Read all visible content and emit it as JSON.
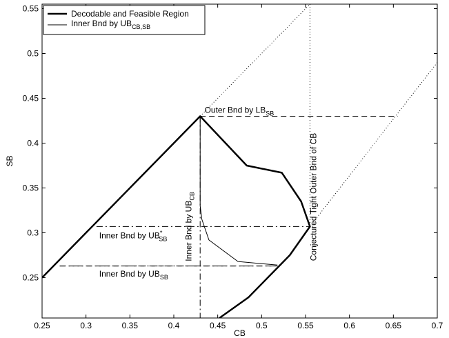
{
  "chart_data": {
    "type": "line",
    "xlabel": "CB",
    "ylabel": "SB",
    "xlim": [
      0.25,
      0.7
    ],
    "ylim": [
      0.205,
      0.555
    ],
    "xticks": [
      0.25,
      0.3,
      0.35,
      0.4,
      0.45,
      0.5,
      0.55,
      0.6,
      0.65,
      0.7
    ],
    "xtick_labels": [
      "0.25",
      "0.3",
      "0.35",
      "0.4",
      "0.45",
      "0.5",
      "0.55",
      "0.6",
      "0.65",
      "0.7"
    ],
    "yticks": [
      0.25,
      0.3,
      0.35,
      0.4,
      0.45,
      0.5,
      0.55
    ],
    "ytick_labels": [
      "0.25",
      "0.3",
      "0.35",
      "0.4",
      "0.45",
      "0.5",
      "0.55"
    ],
    "grid": false,
    "legend_position": "top-left",
    "series": [
      {
        "name": "Decodable and Feasible Region",
        "style": "thick-solid",
        "segments": [
          [
            [
              0.25,
              0.25
            ],
            [
              0.43,
              0.43
            ],
            [
              0.483,
              0.375
            ],
            [
              0.523,
              0.367
            ],
            [
              0.545,
              0.335
            ],
            [
              0.555,
              0.307
            ],
            [
              0.532,
              0.275
            ],
            [
              0.485,
              0.228
            ],
            [
              0.452,
              0.205
            ]
          ]
        ]
      },
      {
        "name": "Inner Bnd by UB",
        "name_subscript": "CB,SB",
        "style": "thin-solid",
        "segments": [
          [
            [
              0.43,
              0.43
            ],
            [
              0.43,
              0.33
            ],
            [
              0.432,
              0.315
            ],
            [
              0.44,
              0.292
            ],
            [
              0.473,
              0.268
            ],
            [
              0.518,
              0.264
            ]
          ]
        ]
      },
      {
        "style": "dashed",
        "segments": [
          [
            [
              0.43,
              0.43
            ],
            [
              0.655,
              0.43
            ]
          ],
          [
            [
              0.27,
              0.263
            ],
            [
              0.518,
              0.263
            ]
          ]
        ]
      },
      {
        "style": "dashdot",
        "segments": [
          [
            [
              0.43,
              0.43
            ],
            [
              0.43,
              0.205
            ]
          ],
          [
            [
              0.312,
              0.307
            ],
            [
              0.555,
              0.307
            ]
          ],
          [
            [
              0.27,
              0.263
            ],
            [
              0.518,
              0.263
            ]
          ]
        ]
      },
      {
        "style": "dotted",
        "segments": [
          [
            [
              0.43,
              0.43
            ],
            [
              0.555,
              0.555
            ]
          ],
          [
            [
              0.555,
              0.555
            ],
            [
              0.555,
              0.307
            ]
          ],
          [
            [
              0.555,
              0.307
            ],
            [
              0.7,
              0.49
            ]
          ]
        ]
      }
    ],
    "annotations": [
      {
        "id": "outer-lb",
        "main": "Outer Bnd by LB",
        "sub": "SB",
        "x": 0.435,
        "y": 0.434,
        "rotate": 0
      },
      {
        "id": "inner-ubstar",
        "main": "Inner Bnd by UB",
        "sup": "*",
        "sub": "SB",
        "x": 0.315,
        "y": 0.294,
        "rotate": 0
      },
      {
        "id": "inner-ub-sb",
        "main": "Inner Bnd by UB",
        "sub": "SB",
        "x": 0.315,
        "y": 0.251,
        "rotate": 0
      },
      {
        "id": "inner-ub-cb",
        "main": "Inner Bnd by UB",
        "sub": "CB",
        "x": 0.42,
        "y": 0.307,
        "rotate": -90
      },
      {
        "id": "conj",
        "main": "Conjectured Tight Outer Bnd of CB",
        "x": 0.562,
        "y": 0.34,
        "rotate": -90
      }
    ]
  }
}
